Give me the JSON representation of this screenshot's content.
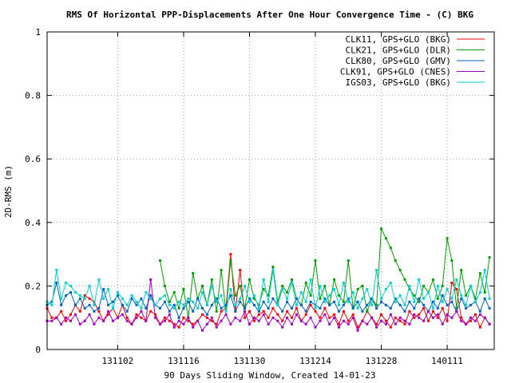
{
  "chart_data": {
    "type": "line",
    "title": "RMS Of Horizontal PPP-Displacements After One Hour Convergence Time - (C) BKG",
    "xlabel": "90 Days Sliding Window, Created 14-01-23",
    "ylabel": "2D-RMS (m)",
    "xlim": [
      -15,
      80
    ],
    "ylim": [
      0,
      1
    ],
    "grid": true,
    "legend_position": "top-right",
    "x_ticks": [
      {
        "value": 0,
        "label": "131102"
      },
      {
        "value": 14,
        "label": "131116"
      },
      {
        "value": 28,
        "label": "131130"
      },
      {
        "value": 42,
        "label": "131214"
      },
      {
        "value": 56,
        "label": "131228"
      },
      {
        "value": 70,
        "label": "140111"
      }
    ],
    "y_ticks": [
      {
        "value": 0,
        "label": "0"
      },
      {
        "value": 0.2,
        "label": "0.2"
      },
      {
        "value": 0.4,
        "label": "0.4"
      },
      {
        "value": 0.6,
        "label": "0.6"
      },
      {
        "value": 0.8,
        "label": "0.8"
      },
      {
        "value": 1,
        "label": "1"
      }
    ],
    "series": [
      {
        "name": "CLK11, GPS+GLO (BKG)",
        "color": "#ff0000",
        "x": [
          -15,
          -14,
          -13,
          -12,
          -11,
          -10,
          -9,
          -8,
          -7,
          -6,
          -5,
          -4,
          -3,
          -2,
          -1,
          0,
          1,
          2,
          3,
          4,
          5,
          6,
          7,
          8,
          9,
          10,
          11,
          12,
          13,
          14,
          15,
          16,
          17,
          18,
          19,
          20,
          21,
          22,
          23,
          24,
          25,
          26,
          27,
          28,
          29,
          30,
          31,
          32,
          33,
          34,
          35,
          36,
          37,
          38,
          39,
          40,
          41,
          42,
          43,
          44,
          45,
          46,
          47,
          48,
          49,
          50,
          51,
          52,
          53,
          54,
          55,
          56,
          57,
          58,
          59,
          60,
          61,
          62,
          63,
          64,
          65,
          66,
          67,
          68,
          69,
          70,
          71,
          72,
          73,
          74,
          75,
          76,
          77,
          78,
          79
        ],
        "values": [
          0.13,
          0.1,
          0.1,
          0.12,
          0.09,
          0.11,
          0.14,
          0.12,
          0.17,
          0.16,
          0.15,
          0.12,
          0.09,
          0.11,
          0.13,
          0.1,
          0.14,
          0.1,
          0.08,
          0.11,
          0.1,
          0.09,
          0.12,
          0.11,
          0.08,
          0.1,
          0.09,
          0.08,
          0.07,
          0.1,
          0.09,
          0.08,
          0.09,
          0.11,
          0.1,
          0.09,
          0.08,
          0.12,
          0.13,
          0.3,
          0.12,
          0.25,
          0.1,
          0.12,
          0.09,
          0.11,
          0.12,
          0.1,
          0.13,
          0.11,
          0.09,
          0.12,
          0.1,
          0.13,
          0.09,
          0.11,
          0.14,
          0.12,
          0.1,
          0.13,
          0.1,
          0.11,
          0.08,
          0.12,
          0.09,
          0.11,
          0.07,
          0.09,
          0.12,
          0.1,
          0.08,
          0.11,
          0.09,
          0.07,
          0.1,
          0.09,
          0.08,
          0.12,
          0.1,
          0.11,
          0.13,
          0.09,
          0.12,
          0.1,
          0.13,
          0.09,
          0.21,
          0.19,
          0.1,
          0.08,
          0.09,
          0.11,
          0.07,
          0.1,
          0.08
        ]
      },
      {
        "name": "CLK21, GPS+GLO (DLR)",
        "color": "#00a000",
        "x": [
          9,
          10,
          11,
          12,
          13,
          14,
          15,
          16,
          17,
          18,
          19,
          20,
          21,
          22,
          23,
          24,
          25,
          26,
          27,
          28,
          29,
          30,
          31,
          32,
          33,
          34,
          35,
          36,
          37,
          38,
          39,
          40,
          41,
          42,
          43,
          44,
          45,
          46,
          47,
          48,
          49,
          50,
          51,
          52,
          53,
          54,
          55,
          56,
          57,
          58,
          59,
          60,
          61,
          62,
          63,
          64,
          65,
          66,
          67,
          68,
          69,
          70,
          71,
          72,
          73,
          74,
          75,
          76,
          77,
          78,
          79
        ],
        "values": [
          0.28,
          0.2,
          0.15,
          0.18,
          0.13,
          0.19,
          0.1,
          0.24,
          0.16,
          0.2,
          0.14,
          0.22,
          0.12,
          0.25,
          0.12,
          0.28,
          0.17,
          0.2,
          0.13,
          0.22,
          0.16,
          0.14,
          0.19,
          0.17,
          0.26,
          0.15,
          0.2,
          0.18,
          0.22,
          0.16,
          0.14,
          0.21,
          0.17,
          0.28,
          0.16,
          0.2,
          0.14,
          0.22,
          0.17,
          0.15,
          0.28,
          0.13,
          0.19,
          0.2,
          0.12,
          0.16,
          0.14,
          0.38,
          0.35,
          0.32,
          0.28,
          0.25,
          0.22,
          0.19,
          0.17,
          0.15,
          0.2,
          0.18,
          0.22,
          0.16,
          0.2,
          0.35,
          0.28,
          0.13,
          0.25,
          0.17,
          0.2,
          0.16,
          0.24,
          0.18,
          0.29
        ]
      },
      {
        "name": "CLK80, GPS+GLO (GMV)",
        "color": "#0060c0",
        "x": [
          -15,
          -14,
          -13,
          -12,
          -11,
          -10,
          -9,
          -8,
          -7,
          -6,
          -5,
          -4,
          -3,
          -2,
          -1,
          0,
          1,
          2,
          3,
          4,
          5,
          6,
          7,
          8,
          9,
          10,
          11,
          12,
          13,
          14,
          15,
          16,
          17,
          18,
          19,
          20,
          21,
          22,
          23,
          24,
          25,
          26,
          27,
          28,
          29,
          30,
          31,
          32,
          33,
          34,
          35,
          36,
          37,
          38,
          39,
          40,
          41,
          42,
          43,
          44,
          45,
          46,
          47,
          48,
          49,
          50,
          51,
          52,
          53,
          54,
          55,
          56,
          57,
          58,
          59,
          60,
          61,
          62,
          63,
          64,
          65,
          66,
          67,
          68,
          69,
          70,
          71,
          72,
          73,
          74,
          75,
          76,
          77,
          78,
          79
        ],
        "values": [
          0.14,
          0.15,
          0.21,
          0.14,
          0.17,
          0.18,
          0.14,
          0.16,
          0.13,
          0.14,
          0.12,
          0.13,
          0.19,
          0.14,
          0.15,
          0.17,
          0.14,
          0.12,
          0.16,
          0.14,
          0.16,
          0.13,
          0.17,
          0.14,
          0.13,
          0.15,
          0.12,
          0.14,
          0.1,
          0.13,
          0.15,
          0.12,
          0.16,
          0.13,
          0.11,
          0.14,
          0.16,
          0.13,
          0.14,
          0.17,
          0.12,
          0.15,
          0.13,
          0.16,
          0.14,
          0.12,
          0.15,
          0.13,
          0.16,
          0.14,
          0.12,
          0.15,
          0.13,
          0.16,
          0.14,
          0.12,
          0.15,
          0.14,
          0.13,
          0.16,
          0.14,
          0.15,
          0.12,
          0.14,
          0.16,
          0.13,
          0.15,
          0.12,
          0.14,
          0.16,
          0.13,
          0.15,
          0.14,
          0.13,
          0.16,
          0.14,
          0.12,
          0.15,
          0.13,
          0.16,
          0.14,
          0.12,
          0.15,
          0.13,
          0.17,
          0.14,
          0.15,
          0.12,
          0.16,
          0.13,
          0.14,
          0.15,
          0.12,
          0.16,
          0.13
        ]
      },
      {
        "name": "CLK91, GPS+GLO (CNES)",
        "color": "#a000c0",
        "x": [
          -15,
          -14,
          -13,
          -12,
          -11,
          -10,
          -9,
          -8,
          -7,
          -6,
          -5,
          -4,
          -3,
          -2,
          -1,
          0,
          1,
          2,
          3,
          4,
          5,
          6,
          7,
          8,
          9,
          10,
          11,
          12,
          13,
          14,
          15,
          16,
          17,
          18,
          19,
          20,
          21,
          22,
          23,
          24,
          25,
          26,
          27,
          28,
          29,
          30,
          31,
          32,
          33,
          34,
          35,
          36,
          37,
          38,
          39,
          40,
          41,
          42,
          43,
          44,
          45,
          46,
          47,
          48,
          49,
          50,
          51,
          52,
          53,
          54,
          55,
          56,
          57,
          58,
          59,
          60,
          61,
          62,
          63,
          64,
          65,
          66,
          67,
          68,
          69,
          70,
          71,
          72,
          73,
          74,
          75,
          76,
          77,
          78,
          79
        ],
        "values": [
          0.09,
          0.09,
          0.1,
          0.08,
          0.1,
          0.09,
          0.11,
          0.08,
          0.09,
          0.11,
          0.08,
          0.1,
          0.09,
          0.12,
          0.09,
          0.1,
          0.11,
          0.09,
          0.08,
          0.1,
          0.12,
          0.09,
          0.22,
          0.1,
          0.08,
          0.09,
          0.11,
          0.07,
          0.09,
          0.08,
          0.1,
          0.07,
          0.09,
          0.06,
          0.08,
          0.1,
          0.07,
          0.09,
          0.11,
          0.08,
          0.1,
          0.09,
          0.12,
          0.08,
          0.1,
          0.09,
          0.11,
          0.08,
          0.1,
          0.09,
          0.07,
          0.1,
          0.08,
          0.11,
          0.09,
          0.08,
          0.1,
          0.07,
          0.09,
          0.11,
          0.08,
          0.1,
          0.07,
          0.09,
          0.08,
          0.1,
          0.06,
          0.09,
          0.08,
          0.1,
          0.07,
          0.09,
          0.08,
          0.11,
          0.08,
          0.1,
          0.09,
          0.08,
          0.11,
          0.1,
          0.09,
          0.12,
          0.1,
          0.11,
          0.08,
          0.11,
          0.1,
          0.12,
          0.09,
          0.08,
          0.1,
          0.09,
          0.11,
          0.1,
          0.08
        ]
      },
      {
        "name": "IGS03, GPS+GLO (BKG)",
        "color": "#00d0d0",
        "x": [
          -15,
          -14,
          -13,
          -12,
          -11,
          -10,
          -9,
          -8,
          -7,
          -6,
          -5,
          -4,
          -3,
          -2,
          -1,
          0,
          1,
          2,
          3,
          4,
          5,
          6,
          7,
          8,
          9,
          10,
          11,
          12,
          13,
          14,
          15,
          16,
          17,
          18,
          19,
          20,
          21,
          22,
          23,
          24,
          25,
          26,
          27,
          28,
          29,
          30,
          31,
          32,
          33,
          34,
          35,
          36,
          37,
          38,
          39,
          40,
          41,
          42,
          43,
          44,
          45,
          46,
          47,
          48,
          49,
          50,
          51,
          52,
          53,
          54,
          55,
          56,
          57,
          58,
          59,
          60,
          61,
          62,
          63,
          64,
          65,
          66,
          67,
          68,
          69,
          70,
          71,
          72,
          73,
          74,
          75,
          76,
          77,
          78,
          79
        ],
        "values": [
          0.15,
          0.14,
          0.25,
          0.16,
          0.21,
          0.2,
          0.18,
          0.17,
          0.16,
          0.2,
          0.14,
          0.22,
          0.16,
          0.19,
          0.13,
          0.18,
          0.16,
          0.14,
          0.17,
          0.15,
          0.13,
          0.18,
          0.16,
          0.14,
          0.16,
          0.17,
          0.14,
          0.13,
          0.15,
          0.14,
          0.16,
          0.15,
          0.13,
          0.18,
          0.14,
          0.2,
          0.15,
          0.17,
          0.12,
          0.19,
          0.14,
          0.16,
          0.2,
          0.15,
          0.17,
          0.13,
          0.22,
          0.15,
          0.25,
          0.14,
          0.19,
          0.16,
          0.21,
          0.14,
          0.18,
          0.15,
          0.22,
          0.13,
          0.2,
          0.15,
          0.17,
          0.19,
          0.14,
          0.21,
          0.15,
          0.18,
          0.13,
          0.16,
          0.19,
          0.14,
          0.25,
          0.16,
          0.19,
          0.21,
          0.15,
          0.17,
          0.14,
          0.2,
          0.15,
          0.22,
          0.16,
          0.18,
          0.13,
          0.2,
          0.15,
          0.19,
          0.16,
          0.22,
          0.17,
          0.14,
          0.2,
          0.15,
          0.18,
          0.25,
          0.16
        ]
      }
    ]
  }
}
